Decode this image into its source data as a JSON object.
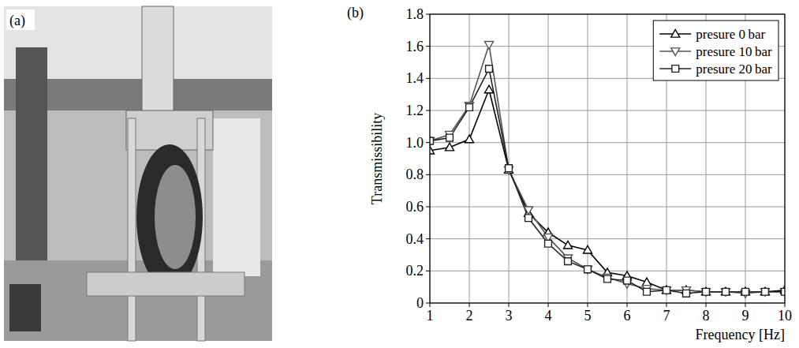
{
  "photo": {
    "label": "(a)"
  },
  "chart_data": {
    "type": "line",
    "panel_label": "(b)",
    "x_label": "Frequency [Hz]",
    "y_label": "Transmissibility",
    "x": [
      1,
      1.5,
      2,
      2.5,
      3,
      3.5,
      4,
      4.5,
      5,
      5.5,
      6,
      6.5,
      7,
      7.5,
      8,
      8.5,
      9,
      9.5,
      10
    ],
    "series": [
      {
        "name": "presure 0 bar",
        "color": "#000000",
        "marker": "triangle-up",
        "line_style": "solid",
        "values": [
          0.95,
          0.97,
          1.02,
          1.33,
          0.83,
          0.56,
          0.44,
          0.36,
          0.33,
          0.19,
          0.17,
          0.13,
          0.08,
          0.08,
          0.07,
          0.07,
          0.07,
          0.07,
          0.08
        ]
      },
      {
        "name": "presure 10 bar",
        "color": "#555555",
        "marker": "triangle-down",
        "line_style": "solid",
        "values": [
          1.01,
          1.05,
          1.23,
          1.61,
          0.83,
          0.58,
          0.41,
          0.28,
          0.21,
          0.16,
          0.12,
          0.09,
          0.08,
          0.08,
          0.07,
          0.07,
          0.06,
          0.07,
          0.07
        ]
      },
      {
        "name": "presure 20 bar",
        "color": "#222222",
        "marker": "square",
        "line_style": "solid",
        "values": [
          1.01,
          1.03,
          1.22,
          1.46,
          0.84,
          0.53,
          0.37,
          0.26,
          0.21,
          0.15,
          0.14,
          0.07,
          0.08,
          0.06,
          0.07,
          0.07,
          0.07,
          0.07,
          0.07
        ]
      }
    ],
    "xlim": [
      1,
      10
    ],
    "xticks": [
      1,
      2,
      3,
      4,
      5,
      6,
      7,
      8,
      9,
      10
    ],
    "ylim": [
      0,
      1.8
    ],
    "yticks": [
      0,
      0.2,
      0.4,
      0.6,
      0.8,
      {
        "value": 1,
        "label": "1.0"
      },
      1.2,
      1.4,
      1.6,
      1.8
    ],
    "grid": true,
    "legend": "top-right"
  }
}
